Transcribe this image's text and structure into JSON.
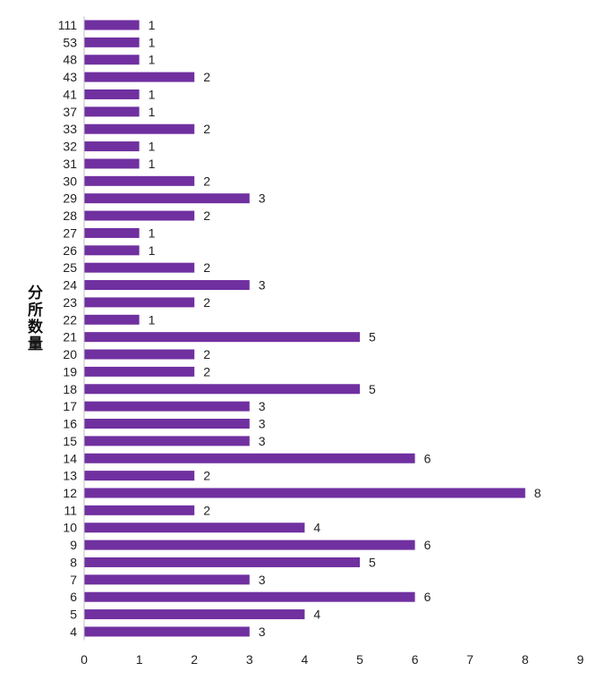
{
  "chart_data": {
    "type": "bar",
    "orientation": "horizontal",
    "ylabel": "分所数量",
    "xlabel": "",
    "xlim": [
      0,
      9
    ],
    "xticks": [
      "0",
      "1",
      "2",
      "3",
      "4",
      "5",
      "6",
      "7",
      "8",
      "9"
    ],
    "grid": false,
    "bar_color": "#7030a0",
    "categories": [
      "111",
      "53",
      "48",
      "43",
      "41",
      "37",
      "33",
      "32",
      "31",
      "30",
      "29",
      "28",
      "27",
      "26",
      "25",
      "24",
      "23",
      "22",
      "21",
      "20",
      "19",
      "18",
      "17",
      "16",
      "15",
      "14",
      "13",
      "12",
      "11",
      "10",
      "9",
      "8",
      "7",
      "6",
      "5",
      "4"
    ],
    "values": [
      1,
      1,
      1,
      2,
      1,
      1,
      2,
      1,
      1,
      2,
      3,
      2,
      1,
      1,
      2,
      3,
      2,
      1,
      5,
      2,
      2,
      5,
      3,
      3,
      3,
      6,
      2,
      8,
      2,
      4,
      6,
      5,
      3,
      6,
      4,
      3
    ]
  }
}
